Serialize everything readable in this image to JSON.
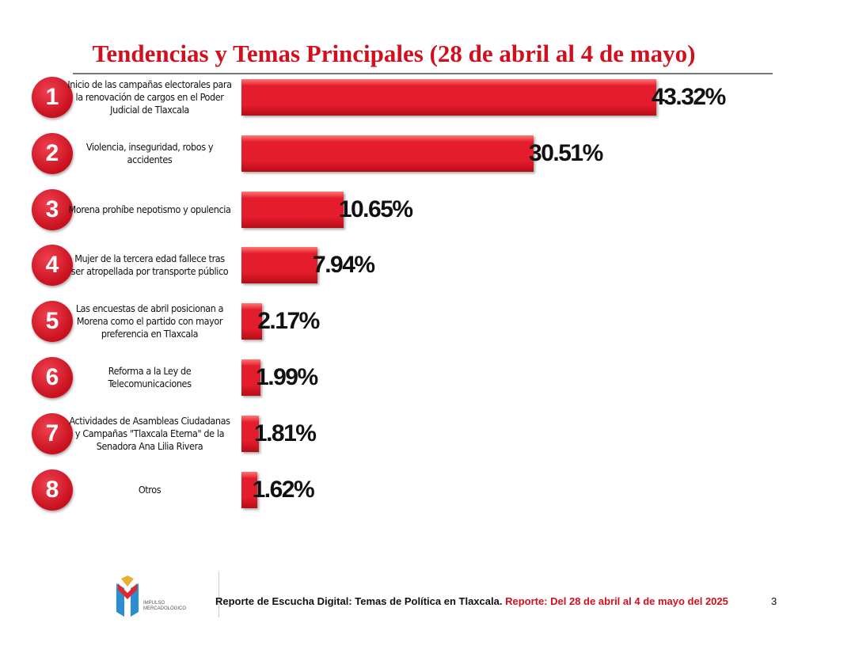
{
  "chart_data": {
    "type": "bar",
    "orientation": "horizontal",
    "title": "Tendencias y Temas Principales (28 de abril al 4 de mayo)",
    "categories": [
      "Inicio de las campañas electorales para la renovación de cargos en el Poder Judicial de Tlaxcala",
      "Violencia, inseguridad, robos y accidentes",
      "Morena prohíbe nepotismo y opulencia",
      "Mujer de la tercera edad fallece tras ser atropellada por transporte público",
      "Las encuestas de abril posicionan a Morena como el partido con mayor preferencia en Tlaxcala",
      "Reforma a la Ley de Telecomunicaciones",
      "Actividades de Asambleas Ciudadanas y Campañas \"Tlaxcala Eterna\" de la Senadora Ana Lilia Rivera",
      "Otros"
    ],
    "ranks": [
      "1",
      "2",
      "3",
      "4",
      "5",
      "6",
      "7",
      "8"
    ],
    "values": [
      43.32,
      30.51,
      10.65,
      7.94,
      2.17,
      1.99,
      1.81,
      1.62
    ],
    "value_labels": [
      "43.32%",
      "30.51%",
      "10.65%",
      "7.94%",
      "2.17%",
      "1.99%",
      "1.81%",
      "1.62%"
    ],
    "bar_color": "#e51c2c",
    "grid": false
  },
  "footer": {
    "text": "Reporte de Escucha Digital: Temas de Política en Tlaxcala.",
    "report_range": "Reporte: Del 28 de abril al 4 de mayo del 2025",
    "page": "3"
  },
  "logo": {
    "line1": "IMPULSO",
    "line2": "MERCADOLÓGICO"
  }
}
